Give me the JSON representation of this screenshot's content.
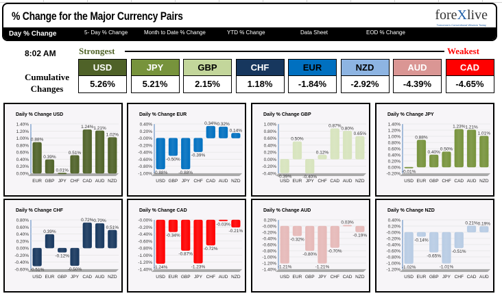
{
  "header": {
    "title": "% Change for the Major Currency Pairs",
    "logo": "forexlive",
    "logo_tagline": "Tomorrow's Conventional Wisdom Today"
  },
  "nav": [
    "Day % Change",
    "5- Day % Change",
    "Month to Date % Change",
    "YTD % Change",
    "Data Sheet",
    "EOD % Change"
  ],
  "summary": {
    "time": "8:02 AM",
    "strongest": "Strongest",
    "weakest": "Weakest",
    "label_line1": "Cumulative",
    "label_line2": "Changes",
    "currencies": [
      {
        "code": "USD",
        "value": "5.26%",
        "color": "#4f6228",
        "text": "#fff"
      },
      {
        "code": "JPY",
        "value": "5.21%",
        "color": "#77933c",
        "text": "#fff"
      },
      {
        "code": "GBP",
        "value": "2.15%",
        "color": "#c3d69b",
        "text": "#000"
      },
      {
        "code": "CHF",
        "value": "1.18%",
        "color": "#17375e",
        "text": "#fff"
      },
      {
        "code": "EUR",
        "value": "-1.84%",
        "color": "#0070c0",
        "text": "#000"
      },
      {
        "code": "NZD",
        "value": "-2.92%",
        "color": "#8db4e2",
        "text": "#000"
      },
      {
        "code": "AUD",
        "value": "-4.39%",
        "color": "#da9694",
        "text": "#fff"
      },
      {
        "code": "CAD",
        "value": "-4.65%",
        "color": "#ff0000",
        "text": "#fff"
      }
    ]
  },
  "chart_data": [
    {
      "type": "bar",
      "title": "Daily % Change USD",
      "color": "#4f6228",
      "categories": [
        "EUR",
        "GBP",
        "JPY",
        "CHF",
        "CAD",
        "AUD",
        "NZD"
      ],
      "values": [
        0.88,
        0.39,
        0.01,
        0.51,
        1.24,
        1.21,
        1.02
      ],
      "ylim": [
        0,
        1.4
      ],
      "step": 0.2
    },
    {
      "type": "bar",
      "title": "Daily % Change EUR",
      "color": "#0070c0",
      "categories": [
        "USD",
        "GBP",
        "JPY",
        "CHF",
        "CAD",
        "AUD",
        "NZD"
      ],
      "values": [
        -0.88,
        -0.5,
        -0.88,
        -0.39,
        0.34,
        0.32,
        0.14
      ],
      "ylim": [
        -1.0,
        0.4
      ],
      "step": 0.2
    },
    {
      "type": "bar",
      "title": "Daily % Change GBP",
      "color": "#d7e4bd",
      "categories": [
        "USD",
        "EUR",
        "JPY",
        "CHF",
        "CAD",
        "AUD",
        "NZD"
      ],
      "values": [
        -0.39,
        0.5,
        -0.4,
        0.12,
        0.87,
        0.8,
        0.65
      ],
      "ylim": [
        -0.4,
        1.0
      ],
      "step": 0.2
    },
    {
      "type": "bar",
      "title": "Daily % Change JPY",
      "color": "#77933c",
      "categories": [
        "USD",
        "EUR",
        "GBP",
        "CHF",
        "CAD",
        "AUD",
        "NZD"
      ],
      "values": [
        -0.01,
        0.88,
        0.4,
        0.5,
        1.23,
        1.21,
        1.01
      ],
      "ylim": [
        -0.2,
        1.4
      ],
      "step": 0.2
    },
    {
      "type": "bar",
      "title": "Daily % Change CHF",
      "color": "#17375e",
      "categories": [
        "USD",
        "EUR",
        "GBP",
        "JPY",
        "CAD",
        "AUD",
        "NZD"
      ],
      "values": [
        -0.51,
        0.39,
        -0.12,
        -0.5,
        0.72,
        0.7,
        0.51
      ],
      "ylim": [
        -0.6,
        0.8
      ],
      "step": 0.2
    },
    {
      "type": "bar",
      "title": "Daily % Change CAD",
      "color": "#ff0000",
      "categories": [
        "USD",
        "EUR",
        "GBP",
        "JPY",
        "CHF",
        "AUD",
        "NZD"
      ],
      "values": [
        -1.24,
        -0.34,
        -0.87,
        -1.23,
        -0.72,
        -0.03,
        -0.21
      ],
      "ylim": [
        -1.4,
        0
      ],
      "step": 0.2
    },
    {
      "type": "bar",
      "title": "Daily % Change AUD",
      "color": "#e6b9b8",
      "categories": [
        "USD",
        "EUR",
        "GBP",
        "JPY",
        "CHF",
        "CAD",
        "NZD"
      ],
      "values": [
        -1.21,
        -0.32,
        -0.8,
        -1.21,
        -0.7,
        0.03,
        -0.19
      ],
      "ylim": [
        -1.4,
        0.2
      ],
      "step": 0.2
    },
    {
      "type": "bar",
      "title": "Daily % Change NZD",
      "color": "#b8cce4",
      "categories": [
        "USD",
        "EUR",
        "GBP",
        "JPY",
        "CHF",
        "CAD",
        "AUD"
      ],
      "values": [
        -1.02,
        -0.14,
        -0.65,
        -1.01,
        -0.51,
        0.21,
        0.19
      ],
      "ylim": [
        -1.2,
        0.4
      ],
      "step": 0.2
    }
  ]
}
